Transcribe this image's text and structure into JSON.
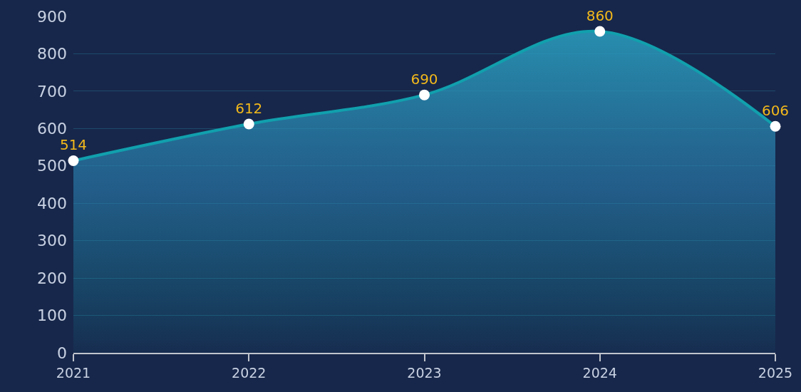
{
  "chart_data": {
    "type": "area",
    "categories": [
      "2021",
      "2022",
      "2023",
      "2024",
      "2025"
    ],
    "series": [
      {
        "color": "#11a0ad",
        "values": [
          514,
          612,
          690,
          860,
          606
        ]
      }
    ],
    "ylim": [
      0,
      900
    ],
    "yticks": [
      0,
      100,
      200,
      300,
      400,
      500,
      600,
      700,
      800,
      900
    ],
    "grid": "y",
    "data_labels": true,
    "marker": "circle",
    "legend": false
  }
}
